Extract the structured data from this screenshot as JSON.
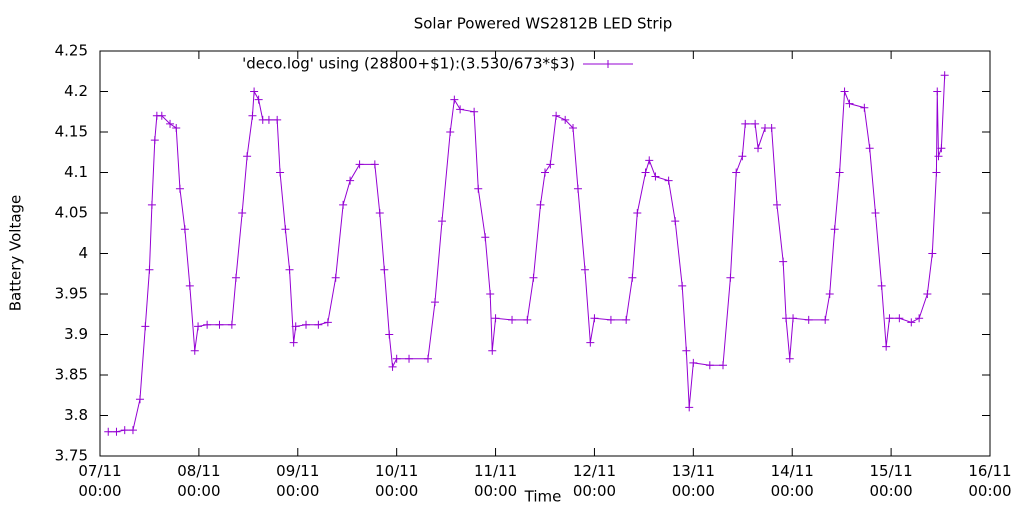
{
  "chart_data": {
    "type": "line",
    "title": "Solar Powered WS2812B LED Strip",
    "xlabel": "Time",
    "ylabel": "Battery Voltage",
    "x": [
      2,
      4,
      6,
      8,
      9.7,
      11,
      12,
      12.6,
      13.3,
      13.8,
      15,
      17,
      18.5,
      19.4,
      20.6,
      21.8,
      23,
      23.8,
      26,
      29,
      32,
      33,
      34.5,
      35.7,
      37,
      37.4,
      38.5,
      39.5,
      41,
      43,
      43.7,
      45,
      46,
      47,
      47.5,
      50,
      53,
      55.3,
      57.2,
      59,
      60.7,
      63,
      66.7,
      67.9,
      69,
      70.2,
      71,
      72,
      75,
      79.6,
      81.3,
      83,
      85,
      86,
      87.4,
      90.8,
      91.8,
      93.5,
      94.7,
      95.2,
      96,
      100,
      103.7,
      105.2,
      106.9,
      108,
      109.3,
      110.7,
      112.9,
      114.8,
      116,
      117.7,
      119,
      120,
      124,
      127.7,
      129.2,
      130.4,
      132.4,
      133.3,
      134.8,
      138,
      139.6,
      141.3,
      142.3,
      143,
      144,
      148,
      151.2,
      153,
      154.4,
      155.9,
      156.6,
      159,
      159.7,
      161.4,
      163,
      164.3,
      165.8,
      166.5,
      167.4,
      168.2,
      172,
      176,
      177.1,
      178.3,
      179.5,
      180.7,
      181.9,
      185.5,
      186.8,
      188.2,
      189.7,
      190.8,
      191.6,
      194,
      196.9,
      198.8,
      200.8,
      202,
      203,
      203.2,
      203.5,
      204.2,
      205
    ],
    "series": [
      {
        "name": "'deco.log' using (28800+$1):(3.530/673*$3)",
        "color": "#9400d3",
        "values": [
          3.78,
          3.78,
          3.782,
          3.782,
          3.82,
          3.91,
          3.98,
          4.06,
          4.14,
          4.17,
          4.17,
          4.16,
          4.155,
          4.08,
          4.03,
          3.96,
          3.88,
          3.91,
          3.912,
          3.912,
          3.912,
          3.97,
          4.05,
          4.12,
          4.17,
          4.2,
          4.19,
          4.165,
          4.165,
          4.165,
          4.1,
          4.03,
          3.98,
          3.89,
          3.91,
          3.912,
          3.912,
          3.915,
          3.97,
          4.06,
          4.09,
          4.11,
          4.11,
          4.05,
          3.98,
          3.9,
          3.86,
          3.87,
          3.87,
          3.87,
          3.94,
          4.04,
          4.15,
          4.19,
          4.178,
          4.175,
          4.08,
          4.02,
          3.95,
          3.88,
          3.92,
          3.918,
          3.918,
          3.97,
          4.06,
          4.1,
          4.11,
          4.17,
          4.165,
          4.155,
          4.08,
          3.98,
          3.89,
          3.92,
          3.918,
          3.918,
          3.97,
          4.05,
          4.1,
          4.115,
          4.095,
          4.09,
          4.04,
          3.96,
          3.88,
          3.81,
          3.865,
          3.862,
          3.862,
          3.97,
          4.1,
          4.12,
          4.16,
          4.16,
          4.13,
          4.155,
          4.155,
          4.06,
          3.99,
          3.92,
          3.87,
          3.92,
          3.918,
          3.918,
          3.95,
          4.03,
          4.1,
          4.2,
          4.185,
          4.18,
          4.13,
          4.05,
          3.96,
          3.885,
          3.92,
          3.92,
          3.915,
          3.92,
          3.95,
          4.0,
          4.1,
          4.2,
          4.12,
          4.13,
          4.22
        ]
      }
    ],
    "xlim": [
      0,
      216
    ],
    "xticks": [
      {
        "value": 0,
        "label": "07/11 00:00"
      },
      {
        "value": 24,
        "label": "08/11 00:00"
      },
      {
        "value": 48,
        "label": "09/11 00:00"
      },
      {
        "value": 72,
        "label": "10/11 00:00"
      },
      {
        "value": 96,
        "label": "11/11 00:00"
      },
      {
        "value": 120,
        "label": "12/11 00:00"
      },
      {
        "value": 144,
        "label": "13/11 00:00"
      },
      {
        "value": 168,
        "label": "14/11 00:00"
      },
      {
        "value": 192,
        "label": "15/11 00:00"
      },
      {
        "value": 216,
        "label": "16/11 00:00"
      }
    ],
    "ylim": [
      3.75,
      4.25
    ],
    "yticks": [
      3.75,
      3.8,
      3.85,
      3.9,
      3.95,
      4,
      4.05,
      4.1,
      4.15,
      4.2,
      4.25
    ],
    "grid": false
  }
}
